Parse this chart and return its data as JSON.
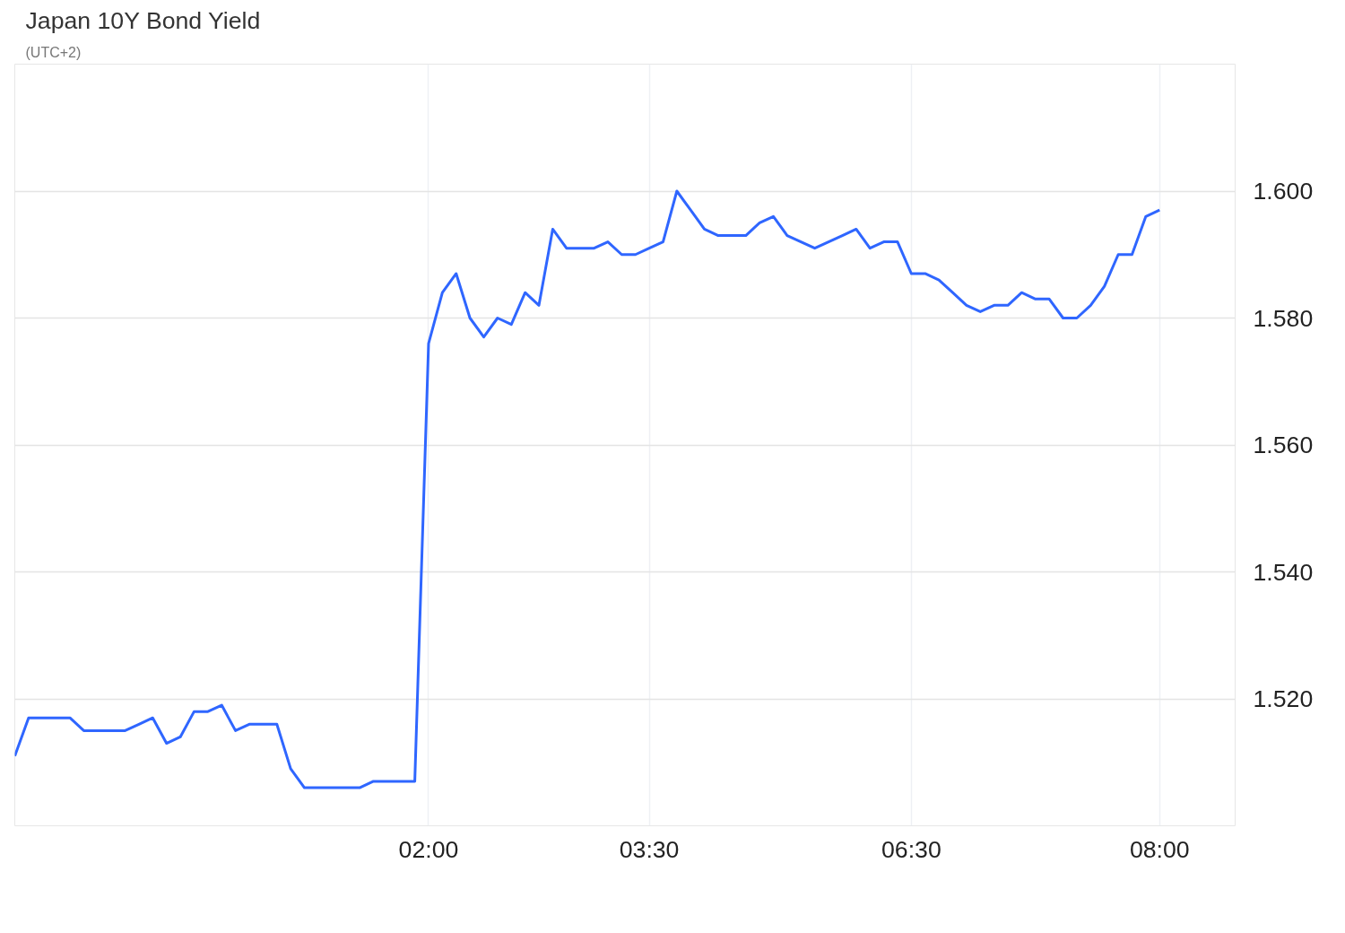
{
  "chart_data": {
    "type": "line",
    "title": "Japan 10Y Bond Yield",
    "subtitle": "(UTC+2)",
    "categories": [
      null,
      null,
      null,
      null,
      null,
      null,
      null,
      null,
      null,
      null,
      null,
      null,
      null,
      null,
      null,
      null,
      null,
      null,
      null,
      null,
      null,
      null,
      null,
      null,
      null,
      null,
      null,
      null,
      null,
      null,
      "02:00",
      null,
      null,
      null,
      null,
      null,
      null,
      null,
      null,
      null,
      null,
      null,
      null,
      null,
      null,
      null,
      "03:30",
      null,
      null,
      null,
      null,
      null,
      null,
      null,
      null,
      null,
      null,
      null,
      null,
      null,
      null,
      null,
      null,
      null,
      null,
      "06:30",
      null,
      null,
      null,
      null,
      null,
      null,
      null,
      null,
      null,
      null,
      null,
      null,
      null,
      null,
      null,
      null,
      null,
      "08:00"
    ],
    "series": [
      {
        "color": "#2f66ff",
        "values": [
          1.511,
          1.517,
          1.517,
          1.517,
          1.517,
          1.515,
          1.515,
          1.515,
          1.515,
          1.516,
          1.517,
          1.513,
          1.514,
          1.518,
          1.518,
          1.519,
          1.515,
          1.516,
          1.516,
          1.516,
          1.509,
          1.506,
          1.506,
          1.506,
          1.506,
          1.506,
          1.507,
          1.507,
          1.507,
          1.507,
          1.576,
          1.584,
          1.587,
          1.58,
          1.577,
          1.58,
          1.579,
          1.584,
          1.582,
          1.594,
          1.591,
          1.591,
          1.591,
          1.592,
          1.59,
          1.59,
          1.591,
          1.592,
          1.6,
          1.597,
          1.594,
          1.593,
          1.593,
          1.593,
          1.595,
          1.596,
          1.593,
          1.592,
          1.591,
          1.592,
          1.593,
          1.594,
          1.591,
          1.592,
          1.592,
          1.587,
          1.587,
          1.586,
          1.584,
          1.582,
          1.581,
          1.582,
          1.582,
          1.584,
          1.583,
          1.583,
          1.58,
          1.58,
          1.582,
          1.585,
          1.59,
          1.59,
          1.596,
          1.597
        ]
      }
    ],
    "ylim": [
      1.5,
      1.62
    ],
    "yticks": [
      {
        "value": 1.52,
        "label": "1.520"
      },
      {
        "value": 1.54,
        "label": "1.540"
      },
      {
        "value": 1.56,
        "label": "1.560"
      },
      {
        "value": 1.58,
        "label": "1.580"
      },
      {
        "value": 1.6,
        "label": "1.600"
      }
    ],
    "grid": true,
    "marker": "none",
    "line_style": "solid"
  }
}
